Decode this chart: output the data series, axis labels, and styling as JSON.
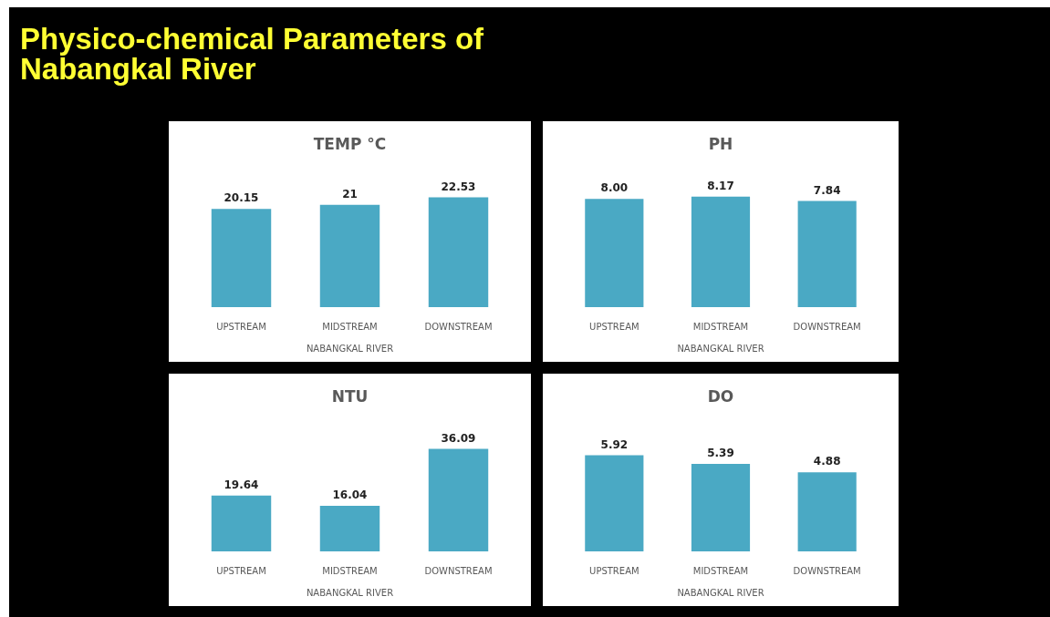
{
  "chart_data": [
    {
      "type": "bar",
      "title": "TEMP °C",
      "xlabel": "NABANGKAL RIVER",
      "categories": [
        "UPSTREAM",
        "MIDSTREAM",
        "DOWNSTREAM"
      ],
      "values": [
        20.15,
        21,
        22.53
      ],
      "color": "#4aa9c4",
      "data_labels": true,
      "grid": false,
      "legend": false,
      "annotations": [
        "Physico-chemical Parameters of Nabangkal River"
      ]
    },
    {
      "type": "bar",
      "title": "PH",
      "xlabel": "NABANGKAL RIVER",
      "categories": [
        "UPSTREAM",
        "MIDSTREAM",
        "DOWNSTREAM"
      ],
      "values": [
        8.0,
        8.17,
        7.84
      ],
      "value_labels": [
        "8.00",
        "8.17",
        "7.84"
      ],
      "color": "#4aa9c4",
      "grid": false,
      "legend": false
    },
    {
      "type": "bar",
      "title": "NTU",
      "xlabel": "NABANGKAL RIVER",
      "categories": [
        "UPSTREAM",
        "MIDSTREAM",
        "DOWNSTREAM"
      ],
      "values": [
        19.64,
        16.04,
        36.09
      ],
      "color": "#4aa9c4",
      "data_labels": true,
      "grid": false,
      "legend": false
    },
    {
      "type": "bar",
      "title": "DO",
      "xlabel": "NABANGKAL RIVER",
      "categories": [
        "UPSTREAM",
        "MIDSTREAM",
        "DOWNSTREAM"
      ],
      "values": [
        5.92,
        5.39,
        4.88
      ],
      "color": "#4aa9c4",
      "data_labels": true,
      "grid": false,
      "legend": false
    }
  ]
}
